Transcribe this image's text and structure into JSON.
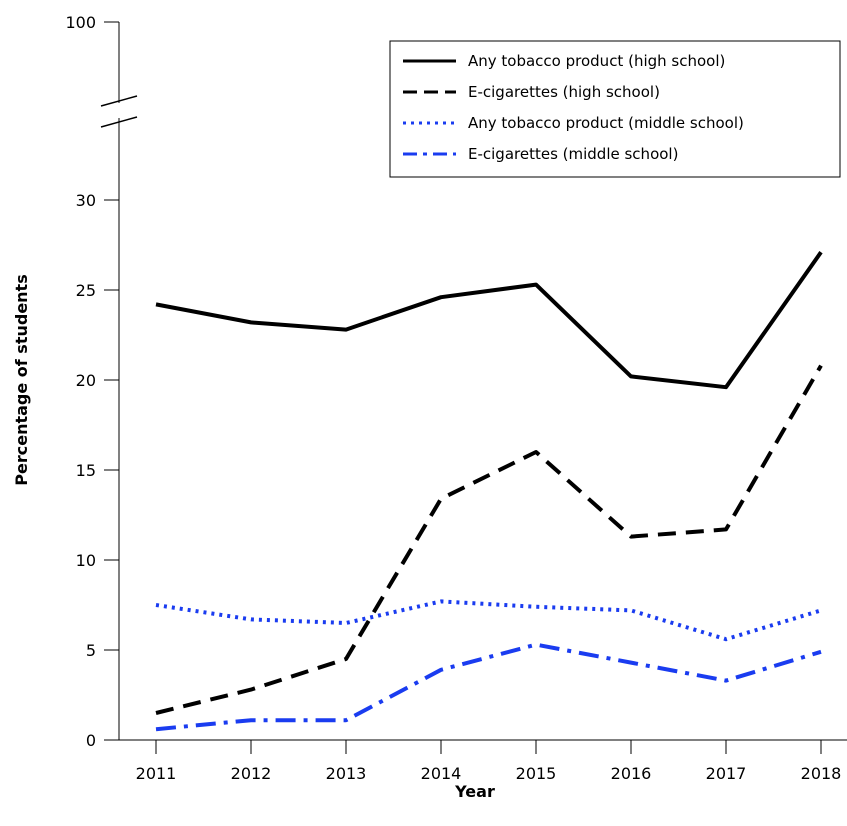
{
  "chart_data": {
    "type": "line",
    "title": "",
    "xlabel": "Year",
    "ylabel": "Percentage of students",
    "x": [
      "2011",
      "2012",
      "2013",
      "2014",
      "2015",
      "2016",
      "2017",
      "2018"
    ],
    "ylim": [
      0,
      30
    ],
    "y_axis_break": true,
    "y_ticks": [
      0,
      5,
      10,
      15,
      20,
      25,
      30
    ],
    "y_top_label": "100",
    "grid": false,
    "legend_position": "top-right",
    "series": [
      {
        "name": "Any tobacco product (high school)",
        "color": "#000000",
        "dash": "solid",
        "values": [
          24.2,
          23.2,
          22.8,
          24.6,
          25.3,
          20.2,
          19.6,
          27.1
        ]
      },
      {
        "name": "E-cigarettes (high school)",
        "color": "#000000",
        "dash": "dashed",
        "values": [
          1.5,
          2.8,
          4.5,
          13.4,
          16.0,
          11.3,
          11.7,
          20.8
        ]
      },
      {
        "name": "Any tobacco product (middle school)",
        "color": "#1a3cf0",
        "dash": "dotted",
        "values": [
          7.5,
          6.7,
          6.5,
          7.7,
          7.4,
          7.2,
          5.6,
          7.2
        ]
      },
      {
        "name": "E-cigarettes (middle school)",
        "color": "#1a3cf0",
        "dash": "dash-dot",
        "values": [
          0.6,
          1.1,
          1.1,
          3.9,
          5.3,
          4.3,
          3.3,
          4.9
        ]
      }
    ]
  }
}
